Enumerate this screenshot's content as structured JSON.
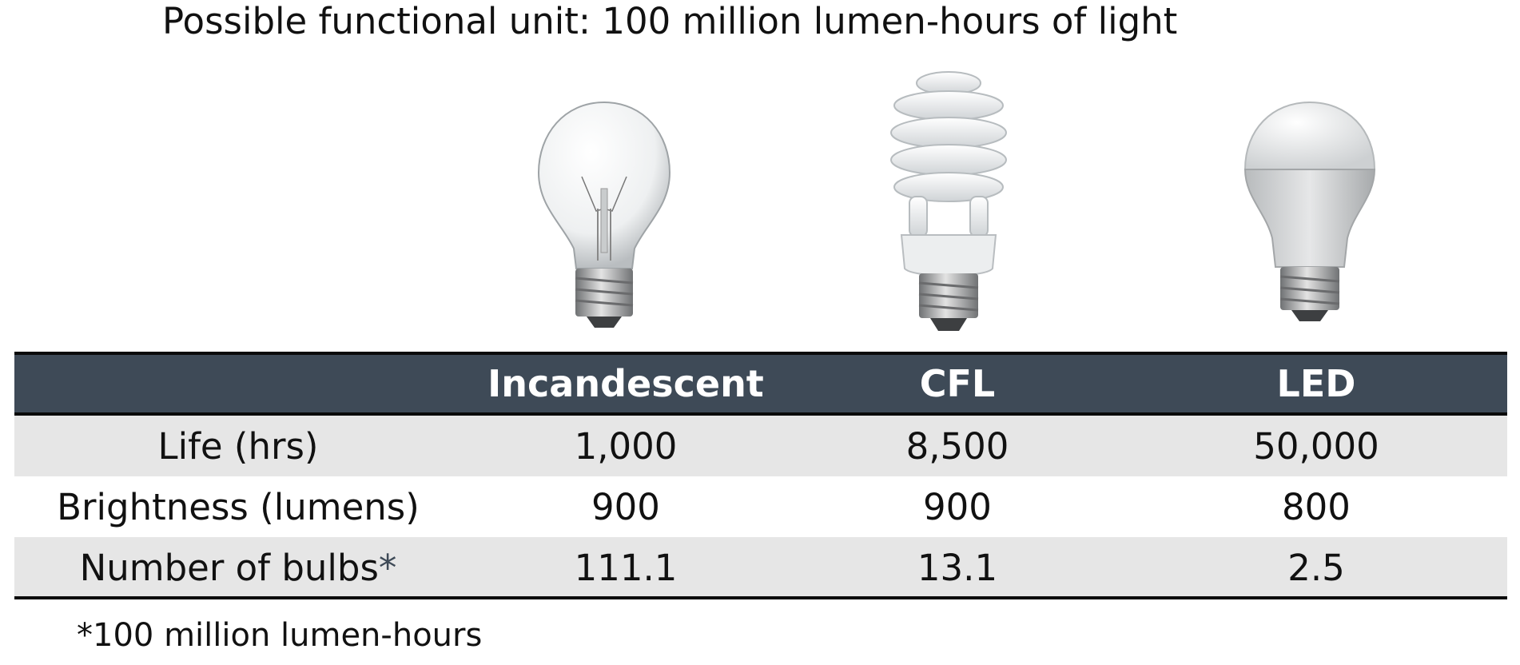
{
  "title": "Possible functional unit: 100 million lumen-hours of light",
  "table": {
    "headers": [
      "",
      "Incandescent",
      "CFL",
      "LED"
    ],
    "rows": [
      {
        "label": "Life (hrs)",
        "values": [
          "1,000",
          "8,500",
          "50,000"
        ]
      },
      {
        "label": "Brightness (lumens)",
        "values": [
          "900",
          "900",
          "800"
        ]
      },
      {
        "label": "Number of bulbs",
        "label_mark": "*",
        "values": [
          "111.1",
          "13.1",
          "2.5"
        ]
      }
    ]
  },
  "footnote": "*100 million lumen-hours",
  "icons": [
    "incandescent-bulb-icon",
    "cfl-bulb-icon",
    "led-bulb-icon"
  ],
  "colors": {
    "header_bg": "#3e4a57",
    "row_shade": "#e6e6e6",
    "header_text": "#ffffff"
  }
}
